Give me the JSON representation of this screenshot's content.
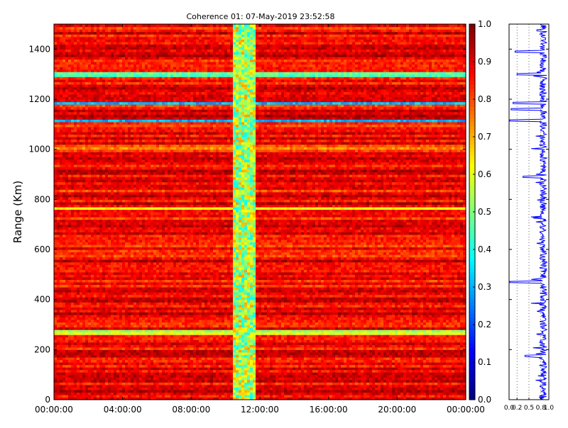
{
  "chart_data": [
    {
      "type": "heatmap",
      "title": "Coherence 01: 07-May-2019 23:52:58",
      "xlabel": "",
      "ylabel": "Range (Km)",
      "x_ticks": [
        "00:00:00",
        "04:00:00",
        "08:00:00",
        "12:00:00",
        "16:00:00",
        "20:00:00",
        "00:00:00"
      ],
      "x_range_hours": [
        0,
        24
      ],
      "y_ticks": [
        0,
        200,
        400,
        600,
        800,
        1000,
        1200,
        1400
      ],
      "ylim": [
        0,
        1500
      ],
      "colorbar": {
        "colormap": "jet",
        "range": [
          0.0,
          1.0
        ],
        "ticks": [
          "0.0",
          "0.1",
          "0.2",
          "0.3",
          "0.4",
          "0.5",
          "0.6",
          "0.7",
          "0.8",
          "0.9",
          "1.0"
        ]
      },
      "typical_value": 0.88,
      "low_coherence_time_band_hours": [
        10.5,
        11.7
      ],
      "time_band_value": 0.55,
      "low_coherence_range_bands": [
        {
          "range_km": 1115,
          "value": 0.25
        },
        {
          "range_km": 1185,
          "value": 0.3
        },
        {
          "range_km": 1300,
          "value": 0.45
        },
        {
          "range_km": 765,
          "value": 0.65
        },
        {
          "range_km": 270,
          "value": 0.55
        },
        {
          "range_km": 1010,
          "value": 0.8
        }
      ]
    },
    {
      "type": "line",
      "x_ticks": [
        "0.0",
        "0.2",
        "0.5",
        "0.8",
        "1.0"
      ],
      "xlim": [
        0.0,
        1.0
      ],
      "ylim": [
        0,
        1500
      ],
      "gridlines_x": [
        0.2,
        0.5,
        0.8
      ],
      "series_color": "#0000ff",
      "dips": [
        {
          "range_km": 1115,
          "value": 0.02
        },
        {
          "range_km": 1160,
          "value": 0.05
        },
        {
          "range_km": 1185,
          "value": 0.1
        },
        {
          "range_km": 1300,
          "value": 0.2
        },
        {
          "range_km": 1390,
          "value": 0.15
        },
        {
          "range_km": 890,
          "value": 0.35
        },
        {
          "range_km": 470,
          "value": 0.02
        },
        {
          "range_km": 175,
          "value": 0.4
        },
        {
          "range_km": 1475,
          "value": 0.7
        }
      ]
    }
  ]
}
